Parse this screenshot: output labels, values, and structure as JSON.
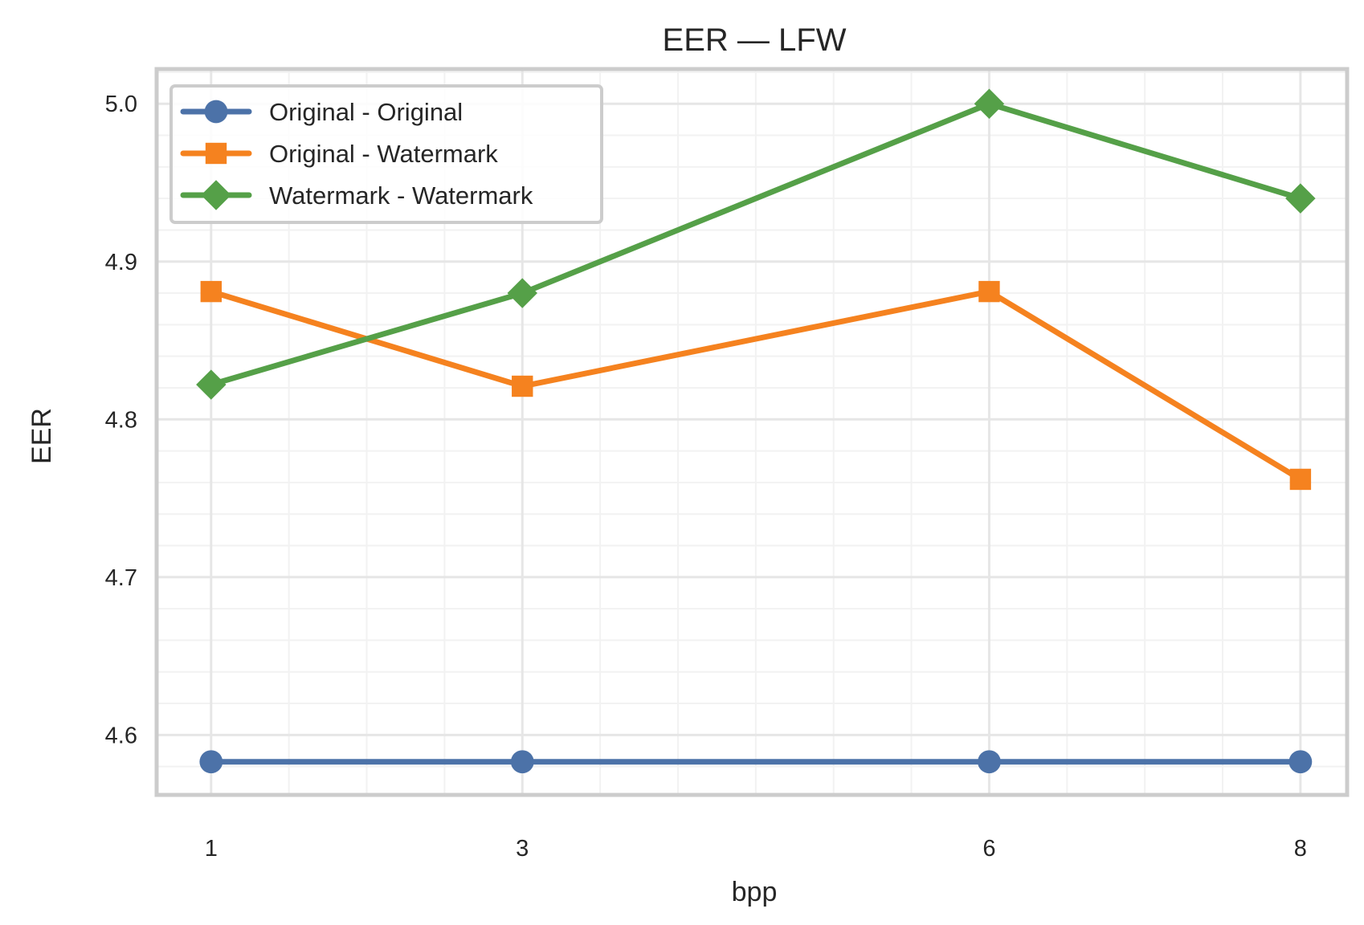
{
  "chart_data": {
    "type": "line",
    "title": "EER — LFW",
    "xlabel": "bpp",
    "ylabel": "EER",
    "x": [
      1,
      3,
      6,
      8
    ],
    "x_ticks": [
      1,
      3,
      6,
      8
    ],
    "xlim": [
      0.65,
      8.3
    ],
    "ylim": [
      4.562,
      5.022
    ],
    "y_ticks": [
      4.6,
      4.7,
      4.8,
      4.9,
      5.0
    ],
    "y_tick_labels": [
      "4.6",
      "4.7",
      "4.8",
      "4.9",
      "5.0"
    ],
    "grid": true,
    "legend": "top-left",
    "series": [
      {
        "name": "Original - Original",
        "color": "#4c72a8",
        "marker": "circle",
        "values": [
          4.583,
          4.583,
          4.583,
          4.583
        ]
      },
      {
        "name": "Original - Watermark",
        "color": "#f5821f",
        "marker": "square",
        "values": [
          4.881,
          4.821,
          4.881,
          4.762
        ]
      },
      {
        "name": "Watermark - Watermark",
        "color": "#55a048",
        "marker": "diamond",
        "values": [
          4.822,
          4.88,
          5.0,
          4.94
        ]
      }
    ]
  }
}
